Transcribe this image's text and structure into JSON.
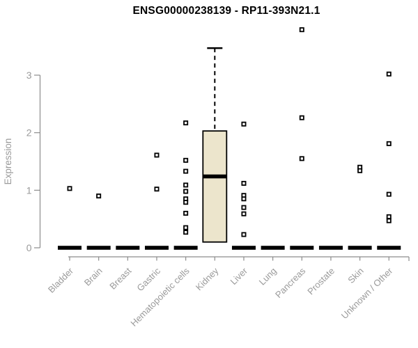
{
  "chart_data": {
    "type": "boxplot",
    "title": "ENSG00000238139 - RP11-393N21.1",
    "ylabel": "Expression",
    "xlabel": "",
    "ylim": [
      0,
      3.9
    ],
    "yticks": [
      0,
      1,
      2,
      3
    ],
    "grid": false,
    "legend": false,
    "categories": [
      "Bladder",
      "Brain",
      "Breast",
      "Gastric",
      "Hematopoietic cells",
      "Kidney",
      "Liver",
      "Lung",
      "Pancreas",
      "Prostate",
      "Skin",
      "Unknown / Other"
    ],
    "groups": [
      {
        "category": "Bladder",
        "box": {
          "q1": 0,
          "median": 0,
          "q3": 0,
          "whisker_low": 0,
          "whisker_high": 0
        },
        "outliers": [
          1.03
        ]
      },
      {
        "category": "Brain",
        "box": {
          "q1": 0,
          "median": 0,
          "q3": 0,
          "whisker_low": 0,
          "whisker_high": 0
        },
        "outliers": [
          0.9
        ]
      },
      {
        "category": "Breast",
        "box": {
          "q1": 0,
          "median": 0,
          "q3": 0,
          "whisker_low": 0,
          "whisker_high": 0
        },
        "outliers": []
      },
      {
        "category": "Gastric",
        "box": {
          "q1": 0,
          "median": 0,
          "q3": 0,
          "whisker_low": 0,
          "whisker_high": 0
        },
        "outliers": [
          1.61,
          1.02
        ]
      },
      {
        "category": "Hematopoietic cells",
        "box": {
          "q1": 0,
          "median": 0,
          "q3": 0,
          "whisker_low": 0,
          "whisker_high": 0
        },
        "outliers": [
          2.17,
          1.52,
          1.33,
          1.09,
          0.98,
          0.85,
          0.79,
          0.6,
          0.35,
          0.27
        ]
      },
      {
        "category": "Kidney",
        "box": {
          "q1": 0.1,
          "median": 1.24,
          "q3": 2.03,
          "whisker_low": 0.1,
          "whisker_high": 3.47
        },
        "outliers": []
      },
      {
        "category": "Liver",
        "box": {
          "q1": 0,
          "median": 0,
          "q3": 0,
          "whisker_low": 0,
          "whisker_high": 0
        },
        "outliers": [
          2.15,
          1.12,
          0.91,
          0.85,
          0.7,
          0.59,
          0.23
        ]
      },
      {
        "category": "Lung",
        "box": {
          "q1": 0,
          "median": 0,
          "q3": 0,
          "whisker_low": 0,
          "whisker_high": 0
        },
        "outliers": []
      },
      {
        "category": "Pancreas",
        "box": {
          "q1": 0,
          "median": 0,
          "q3": 0,
          "whisker_low": 0,
          "whisker_high": 0
        },
        "outliers": [
          3.79,
          2.26,
          1.55
        ]
      },
      {
        "category": "Prostate",
        "box": {
          "q1": 0,
          "median": 0,
          "q3": 0,
          "whisker_low": 0,
          "whisker_high": 0
        },
        "outliers": []
      },
      {
        "category": "Skin",
        "box": {
          "q1": 0,
          "median": 0,
          "q3": 0,
          "whisker_low": 0,
          "whisker_high": 0
        },
        "outliers": [
          1.4,
          1.34
        ]
      },
      {
        "category": "Unknown / Other",
        "box": {
          "q1": 0,
          "median": 0,
          "q3": 0,
          "whisker_low": 0,
          "whisker_high": 0
        },
        "outliers": [
          3.02,
          1.81,
          0.93,
          0.54,
          0.47
        ]
      }
    ],
    "colors": {
      "box_fill": "#ece5cc",
      "box_stroke": "#000000",
      "median": "#000000",
      "zero_bar": "#000000",
      "outlier_stroke": "#000000",
      "outlier_fill": "#ffffff",
      "axis": "#8c8c8c",
      "tick_text": "#9a9a9a",
      "title_text": "#000000"
    }
  }
}
